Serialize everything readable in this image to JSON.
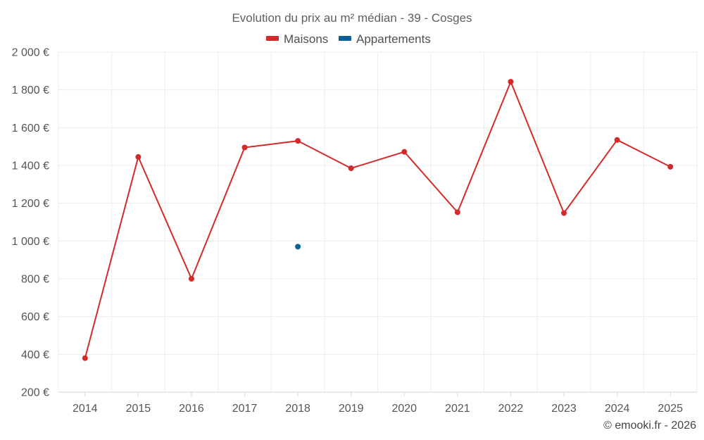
{
  "chart_data": {
    "type": "line",
    "title": "Evolution du prix au m² médian - 39 - Cosges",
    "categories": [
      "2014",
      "2015",
      "2016",
      "2017",
      "2018",
      "2019",
      "2020",
      "2021",
      "2022",
      "2023",
      "2024",
      "2025"
    ],
    "series": [
      {
        "name": "Maisons",
        "color": "#d32a2a",
        "values": [
          380,
          1445,
          800,
          1495,
          1530,
          1385,
          1472,
          1152,
          1843,
          1148,
          1535,
          1393
        ]
      },
      {
        "name": "Appartements",
        "color": "#0b5f96",
        "values": [
          null,
          null,
          null,
          null,
          970,
          null,
          null,
          null,
          null,
          null,
          null,
          null
        ]
      }
    ],
    "ylim": [
      200,
      2000
    ],
    "yticks": [
      200,
      400,
      600,
      800,
      1000,
      1200,
      1400,
      1600,
      1800,
      2000
    ],
    "ytick_labels": [
      "200 €",
      "400 €",
      "600 €",
      "800 €",
      "1 000 €",
      "1 200 €",
      "1 400 €",
      "1 600 €",
      "1 800 €",
      "2 000 €"
    ],
    "grid": true,
    "legend_position": "top-center",
    "credit": "© emooki.fr - 2026"
  }
}
